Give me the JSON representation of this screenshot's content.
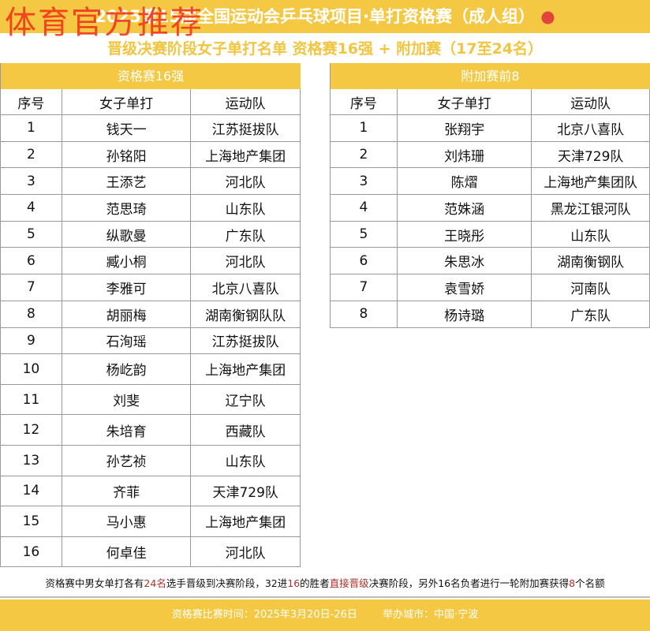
{
  "title": "2025第15届全国运动会乒乓球项目·单打资格赛（成人组）",
  "title_icon": "ping-pong-paddle-icon",
  "watermark": "体育官方推荐",
  "subtitle": "晋级决赛阶段女子单打名单  资格赛16强 + 附加赛（17至24名）",
  "columns": [
    "序号",
    "女子单打",
    "运动队"
  ],
  "left": {
    "section": "资格赛16强",
    "rows": [
      [
        "1",
        "钱天一",
        "江苏挺拔队"
      ],
      [
        "2",
        "孙铭阳",
        "上海地产集团"
      ],
      [
        "3",
        "王添艺",
        "河北队"
      ],
      [
        "4",
        "范思琦",
        "山东队"
      ],
      [
        "5",
        "纵歌曼",
        "广东队"
      ],
      [
        "6",
        "臧小桐",
        "河北队"
      ],
      [
        "7",
        "李雅可",
        "北京八喜队"
      ],
      [
        "8",
        "胡丽梅",
        "湖南衡钢队队"
      ],
      [
        "9",
        "石洵瑶",
        "江苏挺拔队"
      ],
      [
        "10",
        "杨屹韵",
        "上海地产集团"
      ],
      [
        "11",
        "刘斐",
        "辽宁队"
      ],
      [
        "12",
        "朱培育",
        "西藏队"
      ],
      [
        "13",
        "孙艺祯",
        "山东队"
      ],
      [
        "14",
        "齐菲",
        "天津729队"
      ],
      [
        "15",
        "马小惠",
        "上海地产集团"
      ],
      [
        "16",
        "何卓佳",
        "河北队"
      ]
    ]
  },
  "right": {
    "section": "附加赛前8",
    "rows": [
      [
        "1",
        "张翔宇",
        "北京八喜队"
      ],
      [
        "2",
        "刘炜珊",
        "天津729队"
      ],
      [
        "3",
        "陈熠",
        "上海地产集团队"
      ],
      [
        "4",
        "范姝涵",
        "黑龙江银河队"
      ],
      [
        "5",
        "王晓彤",
        "山东队"
      ],
      [
        "6",
        "朱思冰",
        "湖南衡钢队"
      ],
      [
        "7",
        "袁雪娇",
        "河南队"
      ],
      [
        "8",
        "杨诗璐",
        "广东队"
      ]
    ]
  },
  "note": {
    "parts": [
      "资格赛中男女单打各有",
      "24名",
      "选手晋级到决赛阶段，32进",
      "16",
      "的胜者",
      "直接晋级",
      "决赛阶段，另外16名负者进行一轮附加赛获得",
      "8",
      "个名额"
    ]
  },
  "footer": {
    "time": "资格赛比赛时间：2025年3月20日-26日",
    "city": "举办城市：中国·宁波"
  },
  "colors": {
    "accent": "#f4c842",
    "highlight": "#b0302a",
    "watermark": "#f03a1c"
  }
}
